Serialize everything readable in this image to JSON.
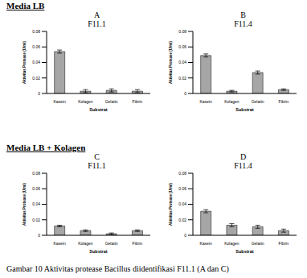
{
  "chart_data": [
    {
      "type": "bar",
      "section": "Media LB",
      "subtitle": "A",
      "title": "F11.1",
      "categories": [
        "Kasein",
        "Kolagen",
        "Gelatin",
        "Fibrin"
      ],
      "values": [
        0.054,
        0.003,
        0.004,
        0.003
      ],
      "errors": [
        0.002,
        0.002,
        0.002,
        0.002
      ],
      "color": "#a6a6a6",
      "ylim": [
        0,
        0.08
      ],
      "yticks": [
        0,
        0.02,
        0.04,
        0.06,
        0.08
      ],
      "x_label": "Substrat",
      "y_label": "Aktivitas Protease (U/ml)",
      "grid": false
    },
    {
      "type": "bar",
      "section": "Media LB",
      "subtitle": "B",
      "title": "F11.4",
      "categories": [
        "Kasein",
        "Kolagen",
        "Gelatin",
        "Fibrin"
      ],
      "values": [
        0.049,
        0.003,
        0.027,
        0.005
      ],
      "errors": [
        0.002,
        0.001,
        0.002,
        0.001
      ],
      "color": "#a6a6a6",
      "ylim": [
        0,
        0.08
      ],
      "yticks": [
        0,
        0.02,
        0.04,
        0.06,
        0.08
      ],
      "x_label": "Substrat",
      "y_label": "Aktivitas Protease (U/ml)",
      "grid": false
    },
    {
      "type": "bar",
      "section": "Media LB + Kolagen",
      "subtitle": "C",
      "title": "F11.1",
      "categories": [
        "Kasein",
        "Kolagen",
        "Gelatin",
        "Fibrin"
      ],
      "values": [
        0.012,
        0.006,
        0.002,
        0.006
      ],
      "errors": [
        0.001,
        0.001,
        0.001,
        0.001
      ],
      "color": "#a6a6a6",
      "ylim": [
        0,
        0.08
      ],
      "yticks": [
        0,
        0.02,
        0.04,
        0.06,
        0.08
      ],
      "x_label": "Substrat",
      "y_label": "Aktivitas Protease (U/ml)",
      "grid": false
    },
    {
      "type": "bar",
      "section": "Media LB + Kolagen",
      "subtitle": "D",
      "title": "F11.4",
      "categories": [
        "Kasein",
        "Kolagen",
        "Gelatin",
        "Fibrin"
      ],
      "values": [
        0.031,
        0.013,
        0.011,
        0.006
      ],
      "errors": [
        0.002,
        0.002,
        0.002,
        0.002
      ],
      "color": "#a6a6a6",
      "ylim": [
        0,
        0.08
      ],
      "yticks": [
        0,
        0.02,
        0.04,
        0.06,
        0.08
      ],
      "x_label": "Substrat",
      "y_label": "Aktivitas Protease (U/ml)",
      "grid": false
    }
  ],
  "caption": "Gambar 10  Aktivitas protease Bacillus diidentifikasi F11.1 (A dan C)"
}
